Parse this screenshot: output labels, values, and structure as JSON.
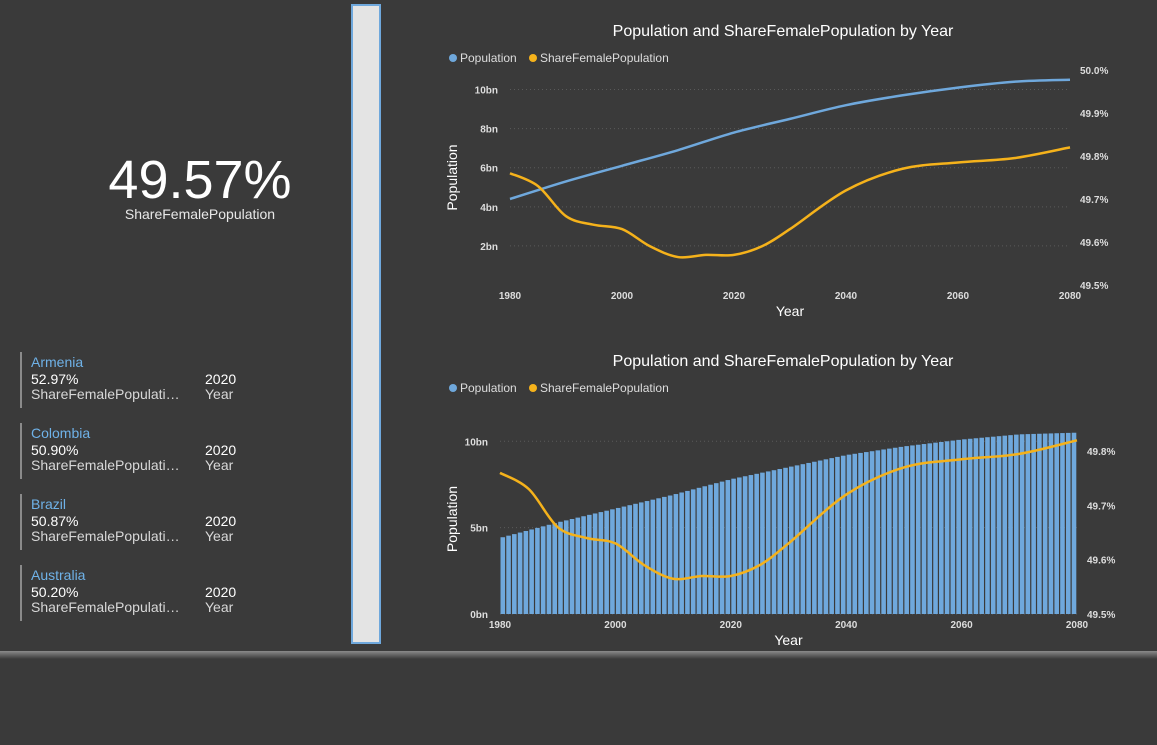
{
  "kpi": {
    "value": "49.57%",
    "label": "ShareFemalePopulation"
  },
  "cards": [
    {
      "country": "Armenia",
      "share": "52.97%",
      "share_label": "ShareFemalePopulati…",
      "year": "2020",
      "year_label": "Year"
    },
    {
      "country": "Colombia",
      "share": "50.90%",
      "share_label": "ShareFemalePopulati…",
      "year": "2020",
      "year_label": "Year"
    },
    {
      "country": "Brazil",
      "share": "50.87%",
      "share_label": "ShareFemalePopulati…",
      "year": "2020",
      "year_label": "Year"
    },
    {
      "country": "Australia",
      "share": "50.20%",
      "share_label": "ShareFemalePopulati…",
      "year": "2020",
      "year_label": "Year"
    }
  ],
  "colors": {
    "population": "#6fa8dc",
    "share": "#f5b21b",
    "background": "#3a3a3a"
  },
  "chart_data": [
    {
      "type": "line",
      "title": "Population and ShareFemalePopulation by Year",
      "xlabel": "Year",
      "ylabel": "Population",
      "legend": [
        "Population",
        "ShareFemalePopulation"
      ],
      "legend_position": "top-left",
      "grid": true,
      "xlim": [
        1980,
        2080
      ],
      "xticks": [
        "1980",
        "2000",
        "2020",
        "2040",
        "2060",
        "2080"
      ],
      "ylim": [
        0,
        11
      ],
      "yticks": [
        "2bn",
        "4bn",
        "6bn",
        "8bn",
        "10bn"
      ],
      "ylim_right": [
        49.5,
        50.0
      ],
      "yticks_right": [
        "49.5%",
        "49.6%",
        "49.7%",
        "49.8%",
        "49.9%",
        "50.0%"
      ],
      "series": [
        {
          "name": "Population",
          "axis": "left",
          "x": [
            1980,
            1990,
            2000,
            2010,
            2020,
            2030,
            2040,
            2050,
            2060,
            2070,
            2080
          ],
          "values": [
            4.4,
            5.3,
            6.1,
            6.9,
            7.8,
            8.5,
            9.2,
            9.7,
            10.1,
            10.4,
            10.5
          ]
        },
        {
          "name": "ShareFemalePopulation",
          "axis": "right",
          "x": [
            1980,
            1985,
            1990,
            1995,
            2000,
            2005,
            2010,
            2015,
            2020,
            2025,
            2030,
            2040,
            2050,
            2060,
            2070,
            2080
          ],
          "values": [
            49.76,
            49.73,
            49.66,
            49.64,
            49.63,
            49.59,
            49.565,
            49.57,
            49.57,
            49.59,
            49.63,
            49.72,
            49.77,
            49.785,
            49.795,
            49.82
          ]
        }
      ]
    },
    {
      "type": "bar",
      "title": "Population and ShareFemalePopulation by Year",
      "xlabel": "Year",
      "ylabel": "Population",
      "legend": [
        "Population",
        "ShareFemalePopulation"
      ],
      "legend_position": "top-left",
      "grid": true,
      "xlim": [
        1980,
        2080
      ],
      "xticks": [
        "1980",
        "2000",
        "2020",
        "2040",
        "2060",
        "2080"
      ],
      "ylim": [
        0,
        11
      ],
      "yticks": [
        "0bn",
        "5bn",
        "10bn"
      ],
      "ylim_right": [
        49.5,
        49.85
      ],
      "yticks_right": [
        "49.5%",
        "49.6%",
        "49.7%",
        "49.8%"
      ],
      "series": [
        {
          "name": "Population",
          "axis": "left",
          "kind": "bar",
          "x": [
            1980,
            1990,
            2000,
            2010,
            2020,
            2030,
            2040,
            2050,
            2060,
            2070,
            2080
          ],
          "values": [
            4.4,
            5.3,
            6.1,
            6.9,
            7.8,
            8.5,
            9.2,
            9.7,
            10.1,
            10.4,
            10.5
          ]
        },
        {
          "name": "ShareFemalePopulation",
          "axis": "right",
          "kind": "line",
          "x": [
            1980,
            1985,
            1990,
            1995,
            2000,
            2005,
            2010,
            2015,
            2020,
            2025,
            2030,
            2040,
            2050,
            2060,
            2070,
            2080
          ],
          "values": [
            49.76,
            49.73,
            49.66,
            49.64,
            49.63,
            49.59,
            49.565,
            49.57,
            49.57,
            49.59,
            49.63,
            49.72,
            49.77,
            49.785,
            49.795,
            49.82
          ]
        }
      ]
    }
  ]
}
